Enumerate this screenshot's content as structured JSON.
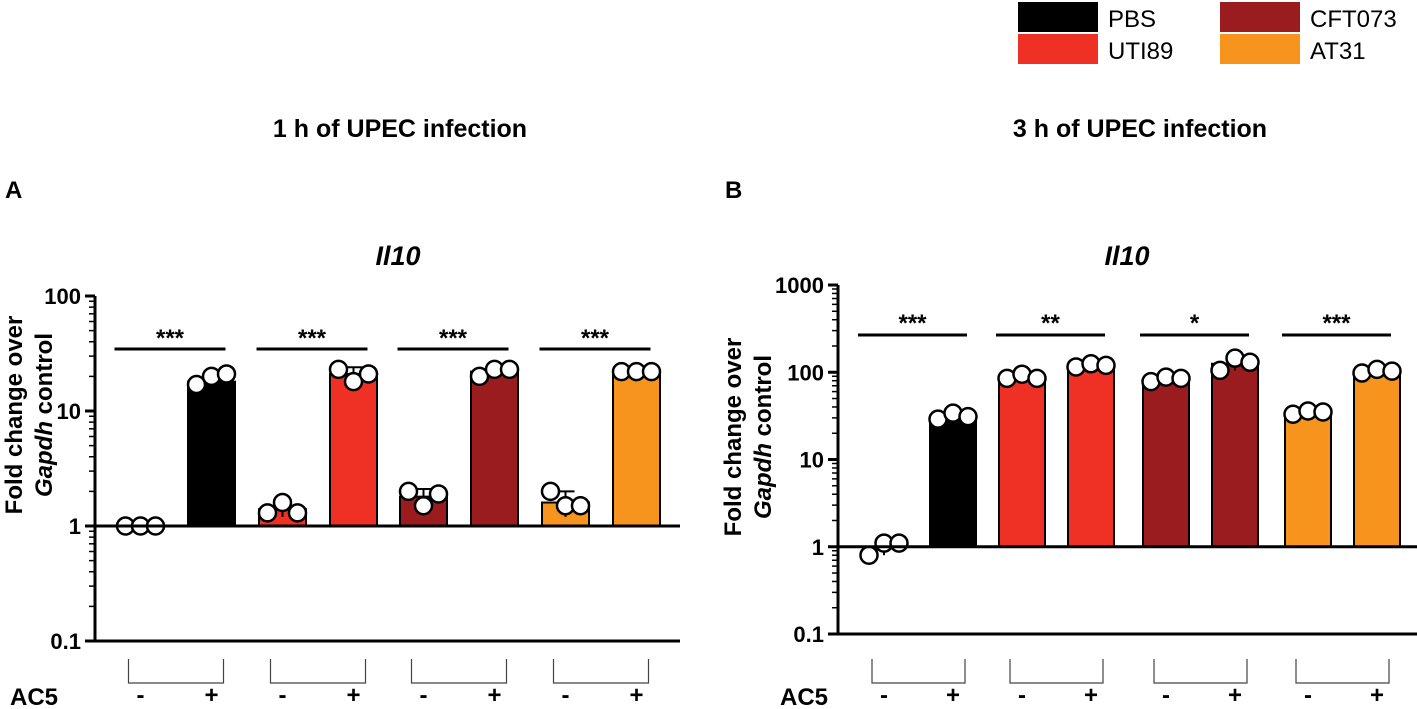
{
  "legend": [
    {
      "label": "PBS",
      "color": "#000000"
    },
    {
      "label": "CFT073",
      "color": "#9b1c1f"
    },
    {
      "label": "UTI89",
      "color": "#ee3124"
    },
    {
      "label": "AT31",
      "color": "#f7941d"
    }
  ],
  "panels": [
    {
      "title": "1 h of UPEC infection",
      "letter": "A"
    },
    {
      "title": "3 h of UPEC infection",
      "letter": "B"
    }
  ],
  "chart_data": [
    {
      "type": "bar",
      "panel": "A",
      "title": "Il10",
      "ylabel_line1": "Fold change over",
      "ylabel_gene": "Gapdh",
      "ylabel_suffix": " control",
      "yscale": "log",
      "ylim": [
        0.1,
        100
      ],
      "yticks": [
        {
          "value": 0.1,
          "label": "0.1"
        },
        {
          "value": 1,
          "label": "1"
        },
        {
          "value": 10,
          "label": "10"
        },
        {
          "value": 100,
          "label": "100"
        }
      ],
      "baseline": 1,
      "xgroup_label": "AC5",
      "bars": [
        {
          "strain": "PBS",
          "ac5": "-",
          "value": 1.0,
          "error": 0.0,
          "points": [
            1.0,
            1.0,
            1.0
          ]
        },
        {
          "strain": "PBS",
          "ac5": "+",
          "value": 18,
          "error": 3,
          "points": [
            17,
            20,
            21
          ]
        },
        {
          "strain": "UTI89",
          "ac5": "-",
          "value": 1.4,
          "error": 0.2,
          "points": [
            1.3,
            1.6,
            1.3
          ]
        },
        {
          "strain": "UTI89",
          "ac5": "+",
          "value": 21,
          "error": 3,
          "points": [
            23,
            18,
            21
          ]
        },
        {
          "strain": "CFT073",
          "ac5": "-",
          "value": 1.8,
          "error": 0.3,
          "points": [
            2.0,
            1.5,
            1.9
          ]
        },
        {
          "strain": "CFT073",
          "ac5": "+",
          "value": 22,
          "error": 2,
          "points": [
            20,
            23,
            23
          ]
        },
        {
          "strain": "AT31",
          "ac5": "-",
          "value": 1.6,
          "error": 0.4,
          "points": [
            2.0,
            1.5,
            1.5
          ]
        },
        {
          "strain": "AT31",
          "ac5": "+",
          "value": 22,
          "error": 1,
          "points": [
            22,
            22,
            22
          ]
        }
      ],
      "significance": [
        "***",
        "***",
        "***",
        "***"
      ]
    },
    {
      "type": "bar",
      "panel": "B",
      "title": "Il10",
      "ylabel_line1": "Fold change over",
      "ylabel_gene": "Gapdh",
      "ylabel_suffix": " control",
      "yscale": "log",
      "ylim": [
        0.1,
        1000
      ],
      "yticks": [
        {
          "value": 0.1,
          "label": "0.1"
        },
        {
          "value": 1,
          "label": "1"
        },
        {
          "value": 10,
          "label": "10"
        },
        {
          "value": 100,
          "label": "100"
        },
        {
          "value": 1000,
          "label": "1000"
        }
      ],
      "baseline": 1,
      "xgroup_label": "AC5",
      "bars": [
        {
          "strain": "PBS",
          "ac5": "-",
          "value": 1.0,
          "error": 0.2,
          "points": [
            0.8,
            1.1,
            1.1
          ]
        },
        {
          "strain": "PBS",
          "ac5": "+",
          "value": 31,
          "error": 3,
          "points": [
            29,
            34,
            31
          ]
        },
        {
          "strain": "UTI89",
          "ac5": "-",
          "value": 88,
          "error": 8,
          "points": [
            85,
            95,
            85
          ]
        },
        {
          "strain": "UTI89",
          "ac5": "+",
          "value": 120,
          "error": 8,
          "points": [
            115,
            125,
            120
          ]
        },
        {
          "strain": "CFT073",
          "ac5": "-",
          "value": 83,
          "error": 6,
          "points": [
            78,
            88,
            85
          ]
        },
        {
          "strain": "CFT073",
          "ac5": "+",
          "value": 125,
          "error": 20,
          "points": [
            105,
            145,
            130
          ]
        },
        {
          "strain": "AT31",
          "ac5": "-",
          "value": 35,
          "error": 2,
          "points": [
            33,
            36,
            35
          ]
        },
        {
          "strain": "AT31",
          "ac5": "+",
          "value": 103,
          "error": 6,
          "points": [
            98,
            108,
            103
          ]
        }
      ],
      "significance": [
        "***",
        "**",
        "*",
        "***"
      ]
    }
  ]
}
